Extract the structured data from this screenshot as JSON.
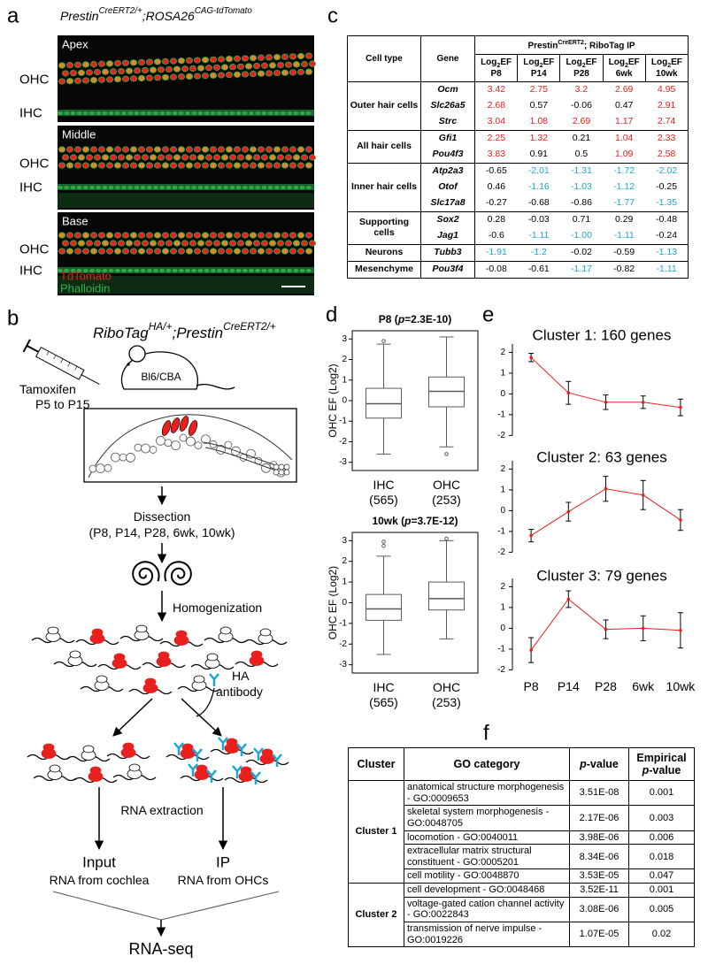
{
  "panel_a": {
    "letter": "a",
    "title": [
      "Prestin",
      "CreERT2/+",
      ";ROSA26",
      "CAG-tdTomato"
    ],
    "regions": [
      "Apex",
      "Middle",
      "Base"
    ],
    "row_labels": [
      "OHC",
      "IHC"
    ],
    "legend": [
      {
        "name": "TdTomato",
        "color": "#e8211e"
      },
      {
        "name": "Phalloidin",
        "color": "#2db34a"
      }
    ]
  },
  "panel_b": {
    "letter": "b",
    "title": [
      "RiboTag",
      "HA/+",
      ";Prestin",
      "CreERT2/+"
    ],
    "injection": [
      "Tamoxifen",
      "P5 to P15"
    ],
    "strain": "Bl6/CBA",
    "steps": {
      "dissection": "Dissection",
      "timepoints": "(P8, P14, P28, 6wk, 10wk)",
      "homogenization": "Homogenization",
      "antibody": [
        "HA",
        "antibody"
      ],
      "extraction": "RNA extraction",
      "input": [
        "Input",
        "RNA from cochlea"
      ],
      "ip": [
        "IP",
        "RNA from OHCs"
      ],
      "sequencing": "RNA-seq"
    }
  },
  "panel_c": {
    "letter": "c",
    "header": {
      "cell_type": "Cell type",
      "gene": "Gene",
      "group": [
        "Prestin",
        "CreERT2",
        "; RiboTag IP"
      ],
      "ef": [
        "Log",
        "2",
        "EF"
      ],
      "timepoints": [
        "P8",
        "P14",
        "P28",
        "6wk",
        "10wk"
      ]
    },
    "groups": [
      {
        "cell_type": "Outer hair cells",
        "genes": [
          {
            "gene": "Ocm",
            "values": [
              "3.42",
              "2.75",
              "3.2",
              "2.69",
              "4.95"
            ],
            "colors": [
              "#e8211e",
              "#e8211e",
              "#e8211e",
              "#e8211e",
              "#e8211e"
            ]
          },
          {
            "gene": "Slc26a5",
            "values": [
              "2.68",
              "0.57",
              "-0.06",
              "0.47",
              "2.91"
            ],
            "colors": [
              "#e8211e",
              "#000000",
              "#000000",
              "#000000",
              "#e8211e"
            ]
          },
          {
            "gene": "Strc",
            "values": [
              "3.04",
              "1.08",
              "2.69",
              "1.17",
              "2.74"
            ],
            "colors": [
              "#e8211e",
              "#e8211e",
              "#e8211e",
              "#e8211e",
              "#e8211e"
            ]
          }
        ]
      },
      {
        "cell_type": "All hair cells",
        "genes": [
          {
            "gene": "Gfi1",
            "values": [
              "2.25",
              "1.32",
              "0.21",
              "1.04",
              "2.33"
            ],
            "colors": [
              "#e8211e",
              "#e8211e",
              "#000000",
              "#e8211e",
              "#e8211e"
            ]
          },
          {
            "gene": "Pou4f3",
            "values": [
              "3.83",
              "0.91",
              "0.5",
              "1.09",
              "2.58"
            ],
            "colors": [
              "#e8211e",
              "#000000",
              "#000000",
              "#e8211e",
              "#e8211e"
            ]
          }
        ]
      },
      {
        "cell_type": "Inner hair cells",
        "genes": [
          {
            "gene": "Atp2a3",
            "values": [
              "-0.65",
              "-2.01",
              "-1.31",
              "-1.72",
              "-2.02"
            ],
            "colors": [
              "#000000",
              "#1aa7d8",
              "#1aa7d8",
              "#1aa7d8",
              "#1aa7d8"
            ]
          },
          {
            "gene": "Otof",
            "values": [
              "0.46",
              "-1.16",
              "-1.03",
              "-1.12",
              "-0.25"
            ],
            "colors": [
              "#000000",
              "#1aa7d8",
              "#1aa7d8",
              "#1aa7d8",
              "#000000"
            ]
          },
          {
            "gene": "Slc17a8",
            "values": [
              "-0.27",
              "-0.68",
              "-0.86",
              "-1.77",
              "-1.35"
            ],
            "colors": [
              "#000000",
              "#000000",
              "#000000",
              "#1aa7d8",
              "#1aa7d8"
            ]
          }
        ]
      },
      {
        "cell_type": "Supporting cells",
        "genes": [
          {
            "gene": "Sox2",
            "values": [
              "0.28",
              "-0.03",
              "0.71",
              "0.29",
              "-0.48"
            ],
            "colors": [
              "#000000",
              "#000000",
              "#000000",
              "#000000",
              "#000000"
            ]
          },
          {
            "gene": "Jag1",
            "values": [
              "-0.6",
              "-1.11",
              "-1.00",
              "-1.11",
              "-0.24"
            ],
            "colors": [
              "#000000",
              "#1aa7d8",
              "#1aa7d8",
              "#1aa7d8",
              "#000000"
            ]
          }
        ]
      },
      {
        "cell_type": "Neurons",
        "genes": [
          {
            "gene": "Tubb3",
            "values": [
              "-1.91",
              "-1.2",
              "-0.02",
              "-0.59",
              "-1.13"
            ],
            "colors": [
              "#1aa7d8",
              "#1aa7d8",
              "#000000",
              "#000000",
              "#1aa7d8"
            ]
          }
        ]
      },
      {
        "cell_type": "Mesenchyme",
        "genes": [
          {
            "gene": "Pou3f4",
            "values": [
              "-0.08",
              "-0.61",
              "-1.17",
              "-0.82",
              "-1.11"
            ],
            "colors": [
              "#000000",
              "#000000",
              "#1aa7d8",
              "#000000",
              "#1aa7d8"
            ]
          }
        ]
      }
    ]
  },
  "chart_data": [
    {
      "type": "box",
      "panel_label": "d",
      "title": [
        "P8 (",
        "p",
        "=2.3E-10)"
      ],
      "y_label": "OHC EF (Log2)",
      "categories": [
        "IHC",
        "OHC"
      ],
      "category_notes": [
        "(565)",
        "(253)"
      ],
      "color": "#5a5a5a",
      "ylim": [
        -3.4,
        3.4
      ],
      "yticks": [
        -3,
        -2,
        -1,
        0,
        1,
        2,
        3
      ],
      "boxes": [
        {
          "min": -2.6,
          "q1": -0.85,
          "median": -0.15,
          "q3": 0.6,
          "max": 2.75,
          "outliers": [
            2.9
          ]
        },
        {
          "min": -2.25,
          "q1": -0.3,
          "median": 0.45,
          "q3": 1.15,
          "max": 3.1,
          "outliers": [
            -2.6
          ]
        }
      ]
    },
    {
      "type": "box",
      "title": [
        "10wk (",
        "p",
        "=3.7E-12)"
      ],
      "y_label": "OHC EF (Log2)",
      "categories": [
        "IHC",
        "OHC"
      ],
      "category_notes": [
        "(565)",
        "(253)"
      ],
      "color": "#5a5a5a",
      "ylim": [
        -3.4,
        3.4
      ],
      "yticks": [
        -3,
        -2,
        -1,
        0,
        1,
        2,
        3
      ],
      "boxes": [
        {
          "min": -2.5,
          "q1": -0.85,
          "median": -0.3,
          "q3": 0.4,
          "max": 2.25,
          "outliers": [
            2.75,
            2.95
          ]
        },
        {
          "min": -1.75,
          "q1": -0.35,
          "median": 0.2,
          "q3": 1.0,
          "max": 3.0,
          "outliers": [
            3.1
          ]
        }
      ]
    },
    {
      "type": "line",
      "panel_label": "e",
      "categories": [
        "P8",
        "P14",
        "P28",
        "6wk",
        "10wk"
      ],
      "ylim": [
        -2,
        2.4
      ],
      "yticks": [
        -2,
        -1,
        0,
        1,
        2
      ],
      "color": "#e8211e",
      "error_color": "#000000",
      "series": [
        {
          "name": "Cluster 1: 160 genes",
          "values": [
            1.75,
            0.05,
            -0.4,
            -0.4,
            -0.65
          ],
          "errors": [
            0.2,
            0.55,
            0.35,
            0.3,
            0.4
          ]
        },
        {
          "name": "Cluster 2: 63 genes",
          "values": [
            -1.2,
            -0.05,
            1.05,
            0.75,
            -0.45
          ],
          "errors": [
            0.3,
            0.45,
            0.6,
            0.7,
            0.5
          ]
        },
        {
          "name": "Cluster 3: 79 genes",
          "values": [
            -1.05,
            1.4,
            -0.05,
            0.0,
            -0.1
          ],
          "errors": [
            0.6,
            0.4,
            0.45,
            0.6,
            0.85
          ]
        }
      ]
    }
  ],
  "panel_f": {
    "letter": "f",
    "header": {
      "cluster": "Cluster",
      "category": "GO category",
      "p_value": [
        "p",
        "-value"
      ],
      "empirical": [
        "Empirical",
        "p",
        "-value"
      ]
    },
    "groups": [
      {
        "cluster": "Cluster 1",
        "terms": [
          {
            "category": "anatomical structure morphogenesis - GO:0009653",
            "p_value": "3.51E-08",
            "empirical": "0.001"
          },
          {
            "category": "skeletal system morphogenesis - GO:0048705",
            "p_value": "2.17E-06",
            "empirical": "0.003"
          },
          {
            "category": "locomotion - GO:0040011",
            "p_value": "3.98E-06",
            "empirical": "0.006"
          },
          {
            "category": "extracellular matrix structural constituent - GO:0005201",
            "p_value": "8.34E-06",
            "empirical": "0.018"
          },
          {
            "category": "cell motility - GO:0048870",
            "p_value": "3.53E-05",
            "empirical": "0.047"
          }
        ]
      },
      {
        "cluster": "Cluster 2",
        "terms": [
          {
            "category": "cell development - GO:0048468",
            "p_value": "3.52E-11",
            "empirical": "0.001"
          },
          {
            "category": "voltage-gated cation channel activity - GO:0022843",
            "p_value": "3.08E-06",
            "empirical": "0.005"
          },
          {
            "category": "transmission of nerve impulse - GO:0019226",
            "p_value": "1.07E-05",
            "empirical": "0.02"
          }
        ]
      }
    ]
  }
}
